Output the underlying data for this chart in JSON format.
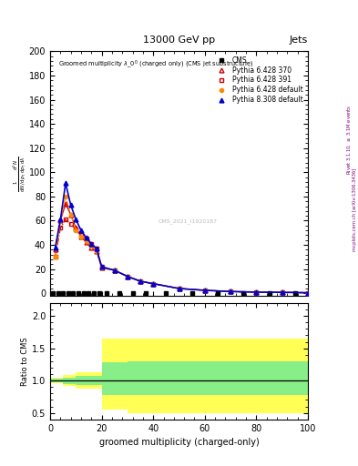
{
  "title_top": "13000 GeV pp",
  "title_right": "Jets",
  "xlabel": "groomed multiplicity (charged-only)",
  "ylabel_ratio": "Ratio to CMS",
  "watermark": "CMS_2021_I1920187",
  "xlim": [
    0,
    100
  ],
  "ylim_main": [
    -2,
    200
  ],
  "ylim_ratio": [
    0.4,
    2.2
  ],
  "x_cms": [
    1,
    2,
    3,
    4,
    5,
    6,
    7,
    8,
    9,
    10,
    12,
    14,
    16,
    18,
    20,
    25,
    30,
    35,
    40,
    50,
    60,
    70,
    80,
    90,
    100
  ],
  "y_cms": [
    0,
    0,
    0,
    0,
    0,
    0,
    0,
    0,
    0,
    0,
    0,
    0,
    0,
    0,
    0,
    0,
    0,
    0,
    0,
    0,
    0,
    0,
    0,
    0,
    0
  ],
  "cms_color": "#000000",
  "x_py6_370": [
    2,
    4,
    6,
    8,
    10,
    12,
    14,
    16,
    18,
    20,
    25,
    30,
    35,
    40,
    50,
    60,
    70,
    80,
    90,
    100
  ],
  "y_py6_370": [
    36,
    60,
    74,
    65,
    54,
    47,
    42,
    38,
    35,
    21,
    19,
    14,
    10,
    8,
    4,
    2.5,
    1.5,
    1,
    0.8,
    0.5
  ],
  "py6_370_color": "#cc0000",
  "x_py6_391": [
    2,
    4,
    6,
    8,
    10,
    12,
    14,
    16,
    18,
    20,
    25,
    30,
    35,
    40,
    50,
    60,
    70,
    80,
    90,
    100
  ],
  "y_py6_391": [
    30,
    54,
    61,
    57,
    53,
    48,
    45,
    41,
    37,
    22,
    19,
    14,
    10,
    8,
    4,
    2.5,
    1.5,
    1,
    0.8,
    0.5
  ],
  "py6_391_color": "#cc0000",
  "x_py6_def": [
    2,
    4,
    6,
    8,
    10,
    12,
    14,
    16,
    18,
    20,
    25,
    30,
    35,
    40,
    50,
    60,
    70,
    80,
    90,
    100
  ],
  "y_py6_def": [
    30,
    60,
    80,
    65,
    52,
    47,
    43,
    39,
    35,
    21,
    19,
    14,
    10,
    8,
    4,
    2.5,
    1.5,
    1,
    0.8,
    0.5
  ],
  "py6_def_color": "#ff8800",
  "x_py8_308": [
    2,
    4,
    6,
    8,
    10,
    12,
    14,
    16,
    18,
    20,
    25,
    30,
    35,
    40,
    50,
    60,
    70,
    80,
    90,
    100
  ],
  "y_py8_308": [
    38,
    61,
    91,
    73,
    61,
    52,
    46,
    41,
    37,
    22,
    19,
    14,
    10,
    8,
    4,
    2.5,
    1.5,
    1,
    0.8,
    0.5
  ],
  "py8_308_color": "#0000cc",
  "ratio_bins": [
    0,
    5,
    10,
    20,
    30,
    50,
    100
  ],
  "ratio_yellow_lo": [
    0.96,
    0.92,
    0.87,
    0.55,
    0.5,
    0.5
  ],
  "ratio_yellow_hi": [
    1.04,
    1.08,
    1.13,
    1.65,
    1.65,
    1.65
  ],
  "ratio_green_lo": [
    0.97,
    0.95,
    0.93,
    0.78,
    0.78,
    0.78
  ],
  "ratio_green_hi": [
    1.03,
    1.05,
    1.07,
    1.28,
    1.3,
    1.3
  ]
}
